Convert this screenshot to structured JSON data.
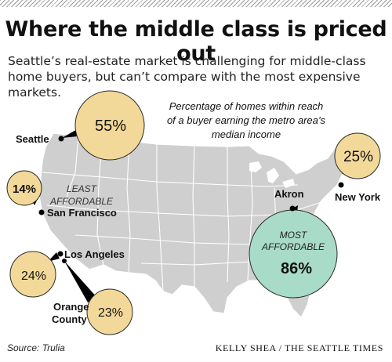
{
  "title": "Where the middle class is priced out",
  "subtitle": "Seattle’s real-estate market is challenging for middle-class home buyers, but can’t compare with the most expensive markets.",
  "legend_note": [
    "Percentage of homes within reach",
    "of a buyer earning the metro area’s",
    "median income"
  ],
  "callouts": {
    "least": [
      "LEAST",
      "AFFORDABLE"
    ],
    "most": [
      "MOST",
      "AFFORDABLE"
    ]
  },
  "cities": {
    "seattle": {
      "name": "Seattle",
      "value": "55%"
    },
    "new_york": {
      "name": "New York",
      "value": "25%"
    },
    "san_francisco": {
      "name": "San Francisco",
      "value": "14%"
    },
    "los_angeles": {
      "name": "Los Angeles",
      "value": "24%"
    },
    "orange_county": {
      "name": [
        "Orange",
        "County"
      ],
      "value": "23%"
    },
    "akron": {
      "name": "Akron",
      "value": "86%"
    }
  },
  "source": "Source: Trulia",
  "credit": "KELLY SHEA / THE SEATTLE TIMES",
  "colors": {
    "bubble_yellow": "#f3d999",
    "bubble_teal": "#a8dbc8",
    "map_fill": "#cfcfcf",
    "state_lines": "#ffffff"
  }
}
